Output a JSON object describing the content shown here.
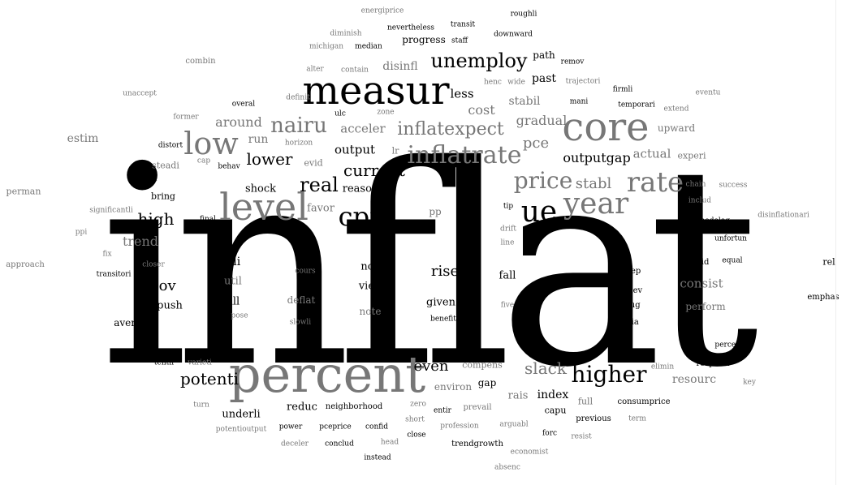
{
  "word_cloud": {
    "words": [
      {
        "text": "inflat",
        "shade": "dark"
      },
      {
        "text": "percent",
        "shade": "gray"
      },
      {
        "text": "measur",
        "shade": "dark"
      },
      {
        "text": "core",
        "shade": "gray"
      },
      {
        "text": "level",
        "shade": "gray"
      },
      {
        "text": "low",
        "shade": "gray"
      },
      {
        "text": "cpi",
        "shade": "dark"
      },
      {
        "text": "ue",
        "shade": "dark"
      },
      {
        "text": "year",
        "shade": "gray"
      },
      {
        "text": "rate",
        "shade": "gray"
      },
      {
        "text": "inflatrate",
        "shade": "gray"
      },
      {
        "text": "unemploy",
        "shade": "dark"
      },
      {
        "text": "higher",
        "shade": "dark"
      },
      {
        "text": "price",
        "shade": "gray"
      },
      {
        "text": "nairu",
        "shade": "gray"
      },
      {
        "text": "real",
        "shade": "dark"
      },
      {
        "text": "potenti",
        "shade": "dark"
      },
      {
        "text": "inflatexpect",
        "shade": "gray"
      },
      {
        "text": "lower",
        "shade": "dark"
      },
      {
        "text": "current",
        "shade": "dark"
      },
      {
        "text": "high",
        "shade": "dark"
      },
      {
        "text": "slack",
        "shade": "gray"
      },
      {
        "text": "abov",
        "shade": "dark"
      },
      {
        "text": "even",
        "shade": "dark"
      },
      {
        "text": "rise",
        "shade": "dark"
      },
      {
        "text": "pce",
        "shade": "gray"
      },
      {
        "text": "stabl",
        "shade": "gray"
      },
      {
        "text": "around",
        "shade": "gray"
      },
      {
        "text": "trend",
        "shade": "gray"
      },
      {
        "text": "gradual",
        "shade": "gray"
      },
      {
        "text": "cost",
        "shade": "gray"
      },
      {
        "text": "outputgap",
        "shade": "dark"
      },
      {
        "text": "output",
        "shade": "dark"
      },
      {
        "text": "acceler",
        "shade": "gray"
      },
      {
        "text": "actual",
        "shade": "gray"
      },
      {
        "text": "consist",
        "shade": "gray"
      },
      {
        "text": "index",
        "shade": "dark"
      },
      {
        "text": "resourc",
        "shade": "gray"
      },
      {
        "text": "less",
        "shade": "dark"
      },
      {
        "text": "past",
        "shade": "dark"
      },
      {
        "text": "stabil",
        "shade": "gray"
      },
      {
        "text": "disinfl",
        "shade": "gray"
      },
      {
        "text": "run",
        "shade": "gray"
      },
      {
        "text": "estim",
        "shade": "gray"
      },
      {
        "text": "upward",
        "shade": "gray"
      },
      {
        "text": "reason",
        "shade": "dark"
      },
      {
        "text": "shock",
        "shade": "dark"
      },
      {
        "text": "favor",
        "shade": "gray"
      },
      {
        "text": "onli",
        "shade": "dark"
      },
      {
        "text": "now",
        "shade": "dark"
      },
      {
        "text": "view",
        "shade": "dark"
      },
      {
        "text": "fall",
        "shade": "dark"
      },
      {
        "text": "given",
        "shade": "dark"
      },
      {
        "text": "still",
        "shade": "dark"
      },
      {
        "text": "push",
        "shade": "dark"
      },
      {
        "text": "util",
        "shade": "gray"
      },
      {
        "text": "deflat",
        "shade": "gray"
      },
      {
        "text": "note",
        "shade": "gray"
      },
      {
        "text": "perform",
        "shade": "gray"
      },
      {
        "text": "rais",
        "shade": "gray"
      },
      {
        "text": "gap",
        "shade": "dark"
      },
      {
        "text": "environ",
        "shade": "gray"
      },
      {
        "text": "reduc",
        "shade": "dark"
      },
      {
        "text": "underli",
        "shade": "dark"
      },
      {
        "text": "path",
        "shade": "dark"
      },
      {
        "text": "progress",
        "shade": "dark"
      },
      {
        "text": "averag",
        "shade": "dark"
      },
      {
        "text": "pp",
        "shade": "gray"
      },
      {
        "text": "bring",
        "shade": "dark"
      },
      {
        "text": "perman",
        "shade": "gray"
      },
      {
        "text": "experi",
        "shade": "gray"
      },
      {
        "text": "full",
        "shade": "gray"
      },
      {
        "text": "compens",
        "shade": "gray"
      },
      {
        "text": "capu",
        "shade": "dark"
      },
      {
        "text": "consumprice",
        "shade": "dark"
      },
      {
        "text": "neighborhood",
        "shade": "dark"
      },
      {
        "text": "trendgrowth",
        "shade": "dark"
      },
      {
        "text": "previous",
        "shade": "dark"
      },
      {
        "text": "evid",
        "shade": "gray"
      },
      {
        "text": "steadi",
        "shade": "gray"
      },
      {
        "text": "lr",
        "shade": "gray"
      },
      {
        "text": "final",
        "shade": "dark"
      },
      {
        "text": "combin",
        "shade": "gray"
      },
      {
        "text": "approach",
        "shade": "gray"
      },
      {
        "text": "rel",
        "shade": "dark"
      },
      {
        "text": "emphas",
        "shade": "dark"
      },
      {
        "text": "creep",
        "shade": "dark"
      },
      {
        "text": "believ",
        "shade": "dark"
      },
      {
        "text": "gaug",
        "shade": "dark"
      },
      {
        "text": "bia",
        "shade": "dark"
      },
      {
        "text": "consid",
        "shade": "dark"
      },
      {
        "text": "equal",
        "shade": "dark"
      },
      {
        "text": "unfortun",
        "shade": "dark"
      },
      {
        "text": "methodolog",
        "shade": "dark"
      },
      {
        "text": "includ",
        "shade": "gray"
      },
      {
        "text": "chain",
        "shade": "gray"
      },
      {
        "text": "success",
        "shade": "gray"
      },
      {
        "text": "disinflationari",
        "shade": "gray"
      },
      {
        "text": "percept",
        "shade": "dark"
      },
      {
        "text": "respond",
        "shade": "dark"
      },
      {
        "text": "elimin",
        "shade": "gray"
      },
      {
        "text": "key",
        "shade": "gray"
      },
      {
        "text": "term",
        "shade": "gray"
      },
      {
        "text": "resist",
        "shade": "gray"
      },
      {
        "text": "forc",
        "shade": "dark"
      },
      {
        "text": "economist",
        "shade": "gray"
      },
      {
        "text": "absenc",
        "shade": "gray"
      },
      {
        "text": "arguabl",
        "shade": "gray"
      },
      {
        "text": "prevail",
        "shade": "gray"
      },
      {
        "text": "profession",
        "shade": "gray"
      },
      {
        "text": "entir",
        "shade": "dark"
      },
      {
        "text": "close",
        "shade": "dark"
      },
      {
        "text": "instead",
        "shade": "dark"
      },
      {
        "text": "head",
        "shade": "gray"
      },
      {
        "text": "conclud",
        "shade": "dark"
      },
      {
        "text": "confid",
        "shade": "dark"
      },
      {
        "text": "pceprice",
        "shade": "dark"
      },
      {
        "text": "power",
        "shade": "dark"
      },
      {
        "text": "deceler",
        "shade": "gray"
      },
      {
        "text": "potentioutput",
        "shade": "gray"
      },
      {
        "text": "turn",
        "shade": "gray"
      },
      {
        "text": "zero",
        "shade": "gray"
      },
      {
        "text": "short",
        "shade": "gray"
      },
      {
        "text": "tenth",
        "shade": "dark"
      },
      {
        "text": "varieti",
        "shade": "gray"
      },
      {
        "text": "onc",
        "shade": "dark"
      },
      {
        "text": "pose",
        "shade": "gray"
      },
      {
        "text": "slowli",
        "shade": "gray"
      },
      {
        "text": "benefit",
        "shade": "dark"
      },
      {
        "text": "five",
        "shade": "gray"
      },
      {
        "text": "line",
        "shade": "gray"
      },
      {
        "text": "drift",
        "shade": "gray"
      },
      {
        "text": "tip",
        "shade": "dark"
      },
      {
        "text": "cours",
        "shade": "gray"
      },
      {
        "text": "closer",
        "shade": "gray"
      },
      {
        "text": "transitori",
        "shade": "dark"
      },
      {
        "text": "fix",
        "shade": "gray"
      },
      {
        "text": "ppi",
        "shade": "gray"
      },
      {
        "text": "significantli",
        "shade": "gray"
      },
      {
        "text": "argu",
        "shade": "dark"
      },
      {
        "text": "cap",
        "shade": "gray"
      },
      {
        "text": "behav",
        "shade": "dark"
      },
      {
        "text": "distort",
        "shade": "dark"
      },
      {
        "text": "former",
        "shade": "gray"
      },
      {
        "text": "horizon",
        "shade": "gray"
      },
      {
        "text": "overal",
        "shade": "dark"
      },
      {
        "text": "definit",
        "shade": "gray"
      },
      {
        "text": "unaccept",
        "shade": "gray"
      },
      {
        "text": "ulc",
        "shade": "dark"
      },
      {
        "text": "zone",
        "shade": "gray"
      },
      {
        "text": "alter",
        "shade": "gray"
      },
      {
        "text": "contain",
        "shade": "gray"
      },
      {
        "text": "michigan",
        "shade": "gray"
      },
      {
        "text": "median",
        "shade": "dark"
      },
      {
        "text": "diminish",
        "shade": "gray"
      },
      {
        "text": "nevertheless",
        "shade": "dark"
      },
      {
        "text": "energiprice",
        "shade": "gray"
      },
      {
        "text": "transit",
        "shade": "dark"
      },
      {
        "text": "staff",
        "shade": "dark"
      },
      {
        "text": "roughli",
        "shade": "dark"
      },
      {
        "text": "downward",
        "shade": "dark"
      },
      {
        "text": "remov",
        "shade": "dark"
      },
      {
        "text": "trajectori",
        "shade": "gray"
      },
      {
        "text": "henc",
        "shade": "gray"
      },
      {
        "text": "wide",
        "shade": "gray"
      },
      {
        "text": "firmli",
        "shade": "dark"
      },
      {
        "text": "mani",
        "shade": "dark"
      },
      {
        "text": "temporari",
        "shade": "dark"
      },
      {
        "text": "eventu",
        "shade": "gray"
      },
      {
        "text": "extend",
        "shade": "gray"
      }
    ],
    "colors": {
      "dark": "#000000",
      "gray": "#777777",
      "background": "#ffffff"
    }
  }
}
